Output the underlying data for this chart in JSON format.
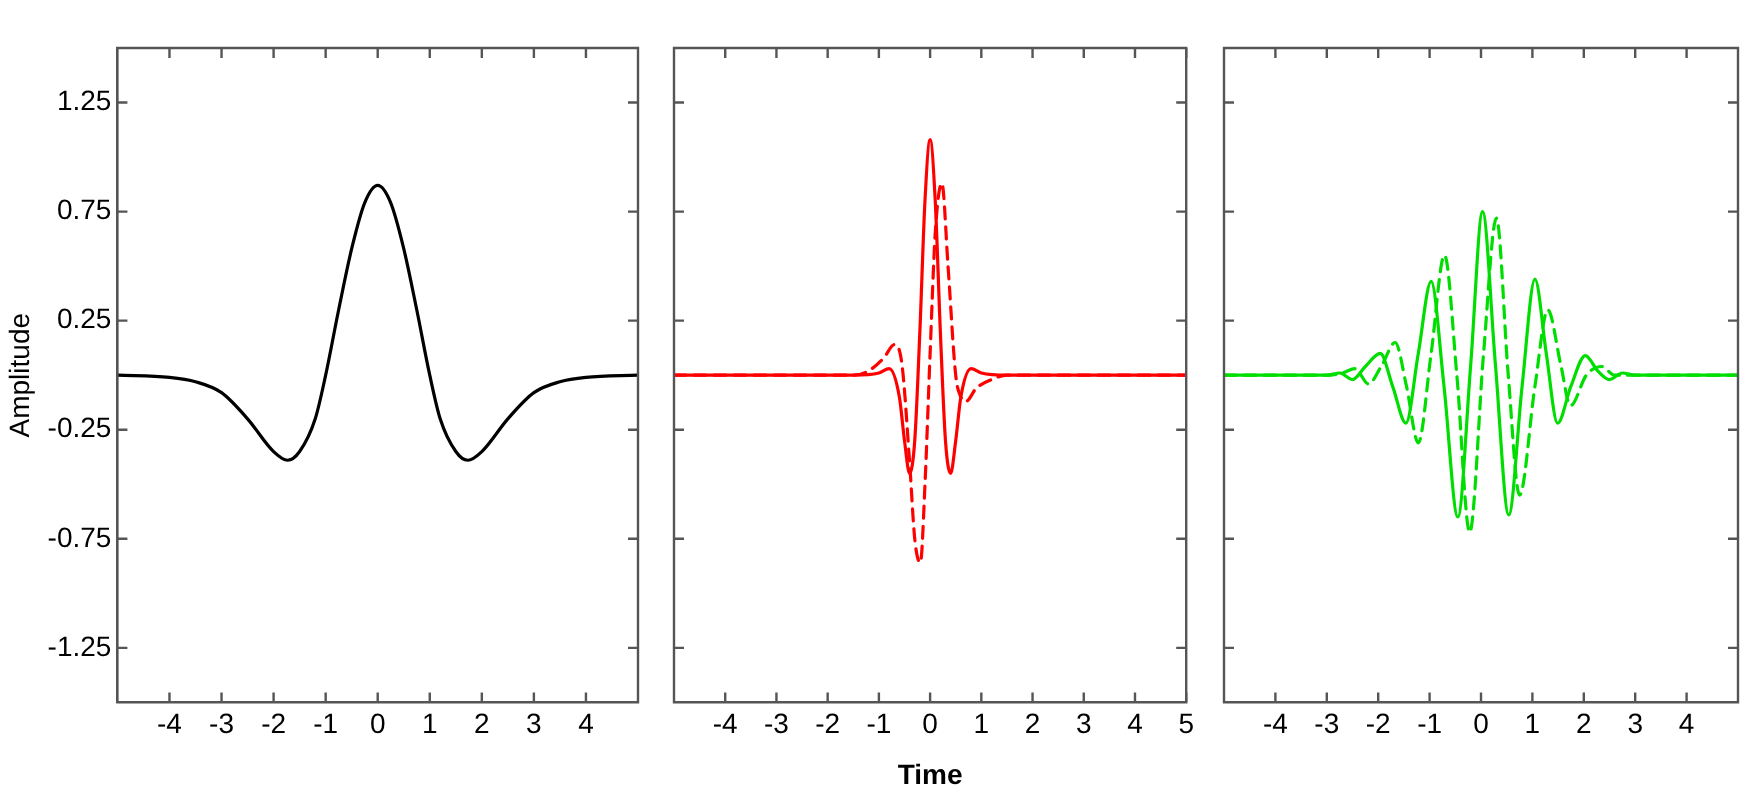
{
  "chart_data": [
    {
      "type": "line",
      "ylabel": "Amplitude",
      "xlim": [
        -5,
        5
      ],
      "xticks": [
        -4,
        -3,
        -2,
        -1,
        0,
        1,
        2,
        3,
        4
      ],
      "ylim": [
        -1.5,
        1.5
      ],
      "yticks": [
        -1.25,
        -0.75,
        -0.25,
        0.25,
        0.75,
        1.25
      ],
      "grid": false,
      "legend": false,
      "marker": "none",
      "series": [
        {
          "color": "#000000",
          "line_style": "solid",
          "x": [
            -5,
            -4,
            -3.5,
            -3,
            -2.5,
            -2,
            -1.73,
            -1.5,
            -1.2,
            -1,
            -0.75,
            -0.5,
            -0.25,
            0,
            0.25,
            0.5,
            0.75,
            1,
            1.2,
            1.5,
            1.73,
            2,
            2.5,
            3,
            3.5,
            4,
            5
          ],
          "values": [
            0,
            -0.01,
            -0.03,
            -0.08,
            -0.2,
            -0.35,
            -0.39,
            -0.35,
            -0.2,
            0,
            0.3,
            0.58,
            0.79,
            0.87,
            0.79,
            0.58,
            0.3,
            0,
            -0.2,
            -0.35,
            -0.39,
            -0.35,
            -0.2,
            -0.08,
            -0.03,
            -0.01,
            0
          ]
        }
      ]
    },
    {
      "type": "line",
      "xlabel": "Time",
      "xlim": [
        -5,
        5
      ],
      "xticks": [
        -4,
        -3,
        -2,
        -1,
        0,
        1,
        2,
        3,
        4,
        5
      ],
      "ylim": [
        -1.5,
        1.5
      ],
      "yticks": [
        -1.25,
        -0.75,
        -0.25,
        0.25,
        0.75,
        1.25
      ],
      "tick_labels": "x",
      "grid": false,
      "legend": false,
      "marker": "none",
      "series": [
        {
          "color": "#ff0000",
          "line_style": "solid",
          "x": [
            -5,
            -1.5,
            -1.0,
            -0.8,
            -0.6,
            -0.5,
            -0.4,
            -0.3,
            -0.2,
            -0.1,
            0,
            0.1,
            0.2,
            0.3,
            0.4,
            0.5,
            0.6,
            0.8,
            1.0,
            1.5,
            5
          ],
          "values": [
            0,
            0,
            0.01,
            0.03,
            -0.1,
            -0.3,
            -0.45,
            -0.3,
            0.2,
            0.8,
            1.08,
            0.8,
            0.2,
            -0.3,
            -0.45,
            -0.3,
            -0.1,
            0.03,
            0.01,
            0,
            0
          ]
        },
        {
          "color": "#ff0000",
          "line_style": "dashed",
          "x": [
            -5,
            -1.5,
            -1.2,
            -0.9,
            -0.7,
            -0.55,
            -0.4,
            -0.3,
            -0.19,
            -0.1,
            0,
            0.1,
            0.23,
            0.35,
            0.5,
            0.6,
            0.7,
            0.9,
            1.2,
            1.5,
            5
          ],
          "values": [
            0,
            0,
            0.02,
            0.08,
            0.14,
            0.05,
            -0.4,
            -0.75,
            -0.86,
            -0.5,
            0.1,
            0.65,
            0.88,
            0.5,
            0,
            -0.1,
            -0.12,
            -0.06,
            -0.02,
            0,
            0
          ]
        }
      ]
    },
    {
      "type": "line",
      "xlim": [
        -5,
        5
      ],
      "xticks": [
        -4,
        -3,
        -2,
        -1,
        0,
        1,
        2,
        3,
        4
      ],
      "ylim": [
        -1.5,
        1.5
      ],
      "yticks": [
        -1.25,
        -0.75,
        -0.25,
        0.25,
        0.75,
        1.25
      ],
      "tick_labels": "x",
      "grid": false,
      "legend": false,
      "marker": "none",
      "series": [
        {
          "color": "#00dd00",
          "line_style": "solid",
          "x": [
            -5,
            -3,
            -2.75,
            -2.5,
            -2.25,
            -1.96,
            -1.72,
            -1.46,
            -1.22,
            -0.97,
            -0.72,
            -0.45,
            -0.2,
            0.03,
            0.28,
            0.54,
            0.8,
            1.05,
            1.27,
            1.49,
            1.75,
            2.03,
            2.27,
            2.5,
            2.75,
            3,
            5
          ],
          "values": [
            0,
            0,
            0.01,
            -0.02,
            0.04,
            0.1,
            -0.05,
            -0.22,
            0.1,
            0.43,
            -0.05,
            -0.65,
            0.05,
            0.75,
            0.05,
            -0.64,
            -0.05,
            0.44,
            0.1,
            -0.22,
            -0.05,
            0.09,
            0.02,
            -0.02,
            0.01,
            0,
            0
          ]
        },
        {
          "color": "#00dd00",
          "line_style": "dashed",
          "x": [
            -5,
            -3,
            -2.7,
            -2.45,
            -2.19,
            -1.92,
            -1.67,
            -1.45,
            -1.22,
            -0.97,
            -0.71,
            -0.47,
            -0.22,
            0.05,
            0.3,
            0.53,
            0.75,
            1.05,
            1.3,
            1.55,
            1.74,
            2.05,
            2.35,
            2.6,
            3,
            5
          ],
          "values": [
            0,
            0,
            0.01,
            0.03,
            -0.04,
            0.05,
            0.15,
            -0.05,
            -0.31,
            0.1,
            0.55,
            0,
            -0.72,
            0.1,
            0.72,
            0,
            -0.55,
            -0.05,
            0.3,
            0.05,
            -0.14,
            0,
            0.04,
            0,
            0,
            0
          ]
        }
      ]
    }
  ]
}
